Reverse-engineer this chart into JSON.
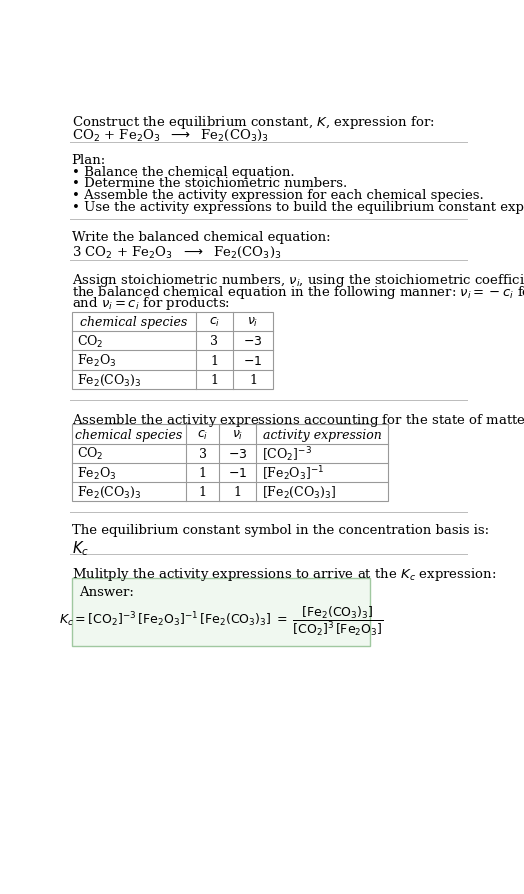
{
  "bg_color": "#ffffff",
  "text_color": "#000000",
  "title_line1": "Construct the equilibrium constant, $K$, expression for:",
  "reaction_unbalanced": "CO$_2$ + Fe$_2$O$_3$  $\\longrightarrow$  Fe$_2$(CO$_3$)$_3$",
  "plan_header": "Plan:",
  "plan_items": [
    "• Balance the chemical equation.",
    "• Determine the stoichiometric numbers.",
    "• Assemble the activity expression for each chemical species.",
    "• Use the activity expressions to build the equilibrium constant expression."
  ],
  "balanced_header": "Write the balanced chemical equation:",
  "reaction_balanced": "3 CO$_2$ + Fe$_2$O$_3$  $\\longrightarrow$  Fe$_2$(CO$_3$)$_3$",
  "stoich_intro_lines": [
    "Assign stoichiometric numbers, $\\nu_i$, using the stoichiometric coefficients, $c_i$, from",
    "the balanced chemical equation in the following manner: $\\nu_i = -c_i$ for reactants",
    "and $\\nu_i = c_i$ for products:"
  ],
  "table1_headers": [
    "chemical species",
    "$c_i$",
    "$\\nu_i$"
  ],
  "table1_rows": [
    [
      "CO$_2$",
      "3",
      "$-3$"
    ],
    [
      "Fe$_2$O$_3$",
      "1",
      "$-1$"
    ],
    [
      "Fe$_2$(CO$_3$)$_3$",
      "1",
      "1"
    ]
  ],
  "assemble_intro": "Assemble the activity expressions accounting for the state of matter and $\\nu_i$:",
  "table2_headers": [
    "chemical species",
    "$c_i$",
    "$\\nu_i$",
    "activity expression"
  ],
  "table2_rows": [
    [
      "CO$_2$",
      "3",
      "$-3$",
      "[CO$_2$]$^{-3}$"
    ],
    [
      "Fe$_2$O$_3$",
      "1",
      "$-1$",
      "[Fe$_2$O$_3$]$^{-1}$"
    ],
    [
      "Fe$_2$(CO$_3$)$_3$",
      "1",
      "1",
      "[Fe$_2$(CO$_3$)$_3$]"
    ]
  ],
  "Kc_intro": "The equilibrium constant symbol in the concentration basis is:",
  "Kc_symbol": "$K_c$",
  "multiply_intro": "Mulitply the activity expressions to arrive at the $K_c$ expression:",
  "answer_box_color": "#f0f8f0",
  "answer_border_color": "#a0c8a0",
  "answer_label": "Answer:"
}
